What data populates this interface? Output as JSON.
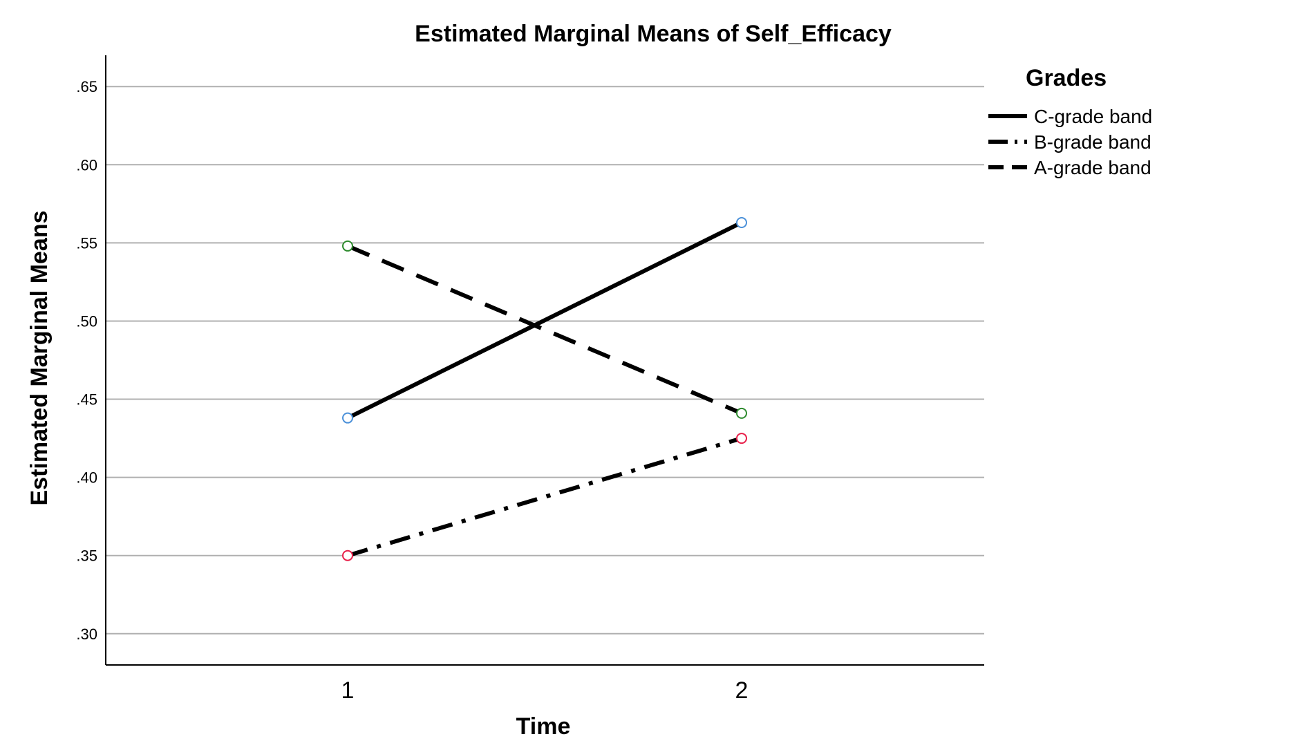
{
  "chart_data": {
    "type": "line",
    "title": "Estimated Marginal Means of Self_Efficacy",
    "xlabel": "Time",
    "ylabel": "Estimated Marginal Means",
    "categories": [
      "1",
      "2"
    ],
    "ylim": [
      0.28,
      0.67
    ],
    "y_ticks": [
      0.3,
      0.35,
      0.4,
      0.45,
      0.5,
      0.55,
      0.6,
      0.65
    ],
    "y_tick_labels": [
      ".30",
      ".35",
      ".40",
      ".45",
      ".50",
      ".55",
      ".60",
      ".65"
    ],
    "grid": "horizontal",
    "legend": {
      "title": "Grades",
      "placement": "right"
    },
    "series": [
      {
        "name": "C-grade band",
        "values": [
          0.438,
          0.563
        ],
        "line_style": "solid",
        "marker_color": "#4a90d9"
      },
      {
        "name": "B-grade band",
        "values": [
          0.35,
          0.425
        ],
        "line_style": "dash-dot",
        "marker_color": "#e8204a"
      },
      {
        "name": "A-grade band",
        "values": [
          0.548,
          0.441
        ],
        "line_style": "dashed",
        "marker_color": "#2e8b2e"
      }
    ],
    "colors": {
      "line": "#000000",
      "grid": "#b0b0b0",
      "axis": "#000000"
    }
  }
}
